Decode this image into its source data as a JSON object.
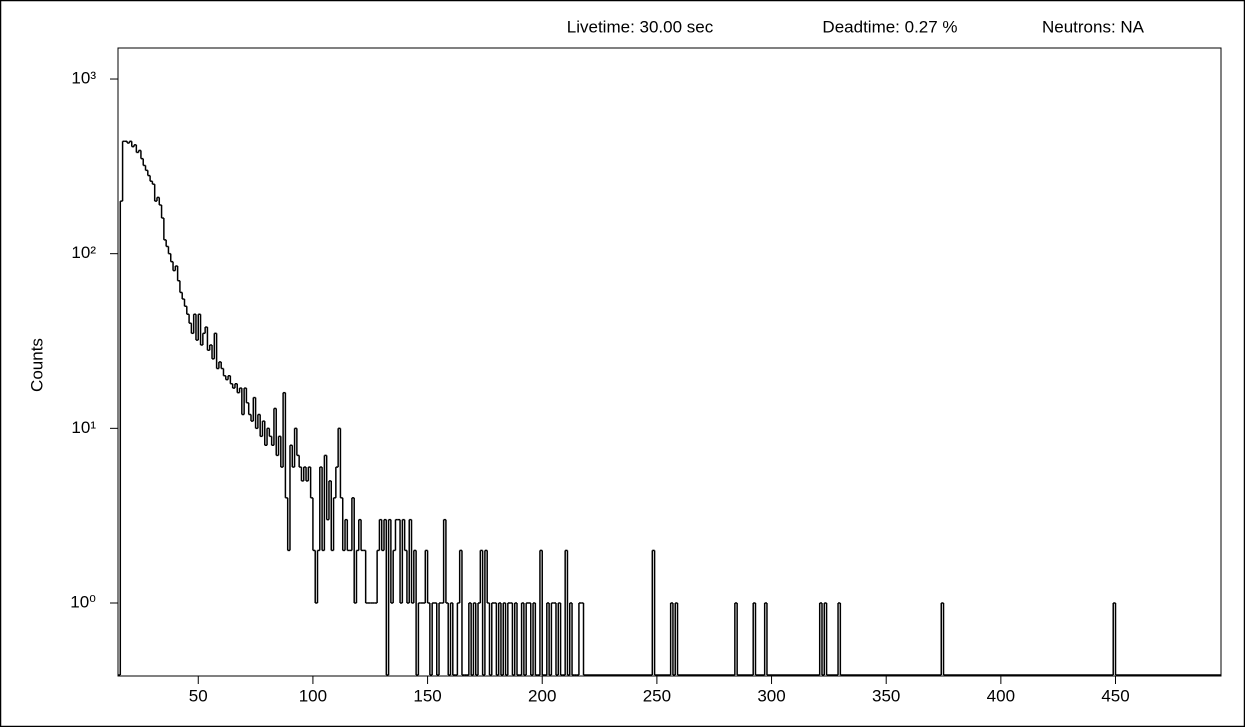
{
  "chart_data": {
    "type": "step",
    "header": [
      "Livetime: 30.00 sec",
      "Deadtime: 0.27 %",
      "Neutrons: NA"
    ],
    "ylabel": "Counts",
    "log_y": true,
    "color": "#000000",
    "xlim": [
      15,
      496
    ],
    "xticks": [
      50,
      100,
      150,
      200,
      250,
      300,
      350,
      400,
      450
    ],
    "ylim": [
      0.387,
      1285
    ],
    "yticks": [
      {
        "value": 1,
        "label": "10⁰"
      },
      {
        "value": 10,
        "label": "10¹"
      },
      {
        "value": 100,
        "label": "10²"
      },
      {
        "value": 1000,
        "label": "10³"
      }
    ],
    "x": [
      15,
      16,
      17,
      18,
      19,
      20,
      21,
      22,
      23,
      24,
      25,
      26,
      27,
      28,
      29,
      30,
      31,
      32,
      33,
      34,
      35,
      36,
      37,
      38,
      39,
      40,
      41,
      42,
      43,
      44,
      45,
      46,
      47,
      48,
      49,
      50,
      51,
      52,
      53,
      54,
      55,
      56,
      57,
      58,
      59,
      60,
      61,
      62,
      63,
      64,
      65,
      66,
      67,
      68,
      69,
      70,
      71,
      72,
      73,
      74,
      75,
      76,
      77,
      78,
      79,
      80,
      81,
      82,
      83,
      84,
      85,
      86,
      87,
      88,
      89,
      90,
      91,
      92,
      93,
      94,
      95,
      96,
      97,
      98,
      99,
      100,
      101,
      102,
      103,
      104,
      105,
      106,
      107,
      108,
      109,
      110,
      111,
      112,
      113,
      114,
      115,
      116,
      117,
      118,
      119,
      120,
      121,
      122,
      123,
      124,
      125,
      126,
      127,
      128,
      129,
      130,
      131,
      132,
      133,
      134,
      135,
      136,
      137,
      138,
      139,
      140,
      141,
      142,
      143,
      144,
      145,
      146,
      147,
      148,
      149,
      150,
      151,
      152,
      153,
      154,
      155,
      156,
      157,
      158,
      159,
      160,
      161,
      162,
      163,
      164,
      165,
      166,
      167,
      168,
      169,
      170,
      171,
      172,
      173,
      174,
      175,
      176,
      177,
      178,
      179,
      180,
      181,
      182,
      183,
      184,
      185,
      186,
      187,
      188,
      189,
      190,
      191,
      192,
      193,
      194,
      195,
      196,
      197,
      198,
      199,
      200,
      201,
      202,
      203,
      204,
      205,
      206,
      207,
      208,
      209,
      210,
      211,
      212,
      213,
      214,
      215,
      216,
      217,
      218,
      248,
      249,
      256,
      257,
      258,
      259,
      284,
      285,
      292,
      293,
      297,
      298,
      321,
      322,
      323,
      324,
      329,
      330,
      374,
      375,
      449,
      450
    ],
    "series": [
      {
        "values": [
          0,
          200,
          440,
          440,
          430,
          440,
          410,
          420,
          380,
          390,
          350,
          320,
          300,
          280,
          260,
          250,
          200,
          210,
          190,
          160,
          120,
          110,
          100,
          90,
          80,
          85,
          70,
          60,
          55,
          50,
          45,
          40,
          35,
          45,
          32,
          45,
          30,
          35,
          38,
          28,
          30,
          25,
          35,
          22,
          24,
          22,
          20,
          19,
          20,
          18,
          17,
          18,
          16,
          17,
          12,
          17,
          14,
          12,
          11,
          15,
          10,
          12,
          9,
          11,
          8,
          10,
          9,
          8,
          13,
          7,
          9,
          6,
          16,
          4,
          2,
          8,
          6,
          10,
          7,
          6,
          5,
          6,
          5,
          6,
          4,
          2,
          1,
          2,
          6,
          2,
          7,
          3,
          5,
          2,
          4,
          6,
          10,
          4,
          2,
          3,
          2,
          2,
          4,
          1,
          2,
          3,
          2,
          2,
          1,
          1,
          1,
          1,
          1,
          2,
          3,
          2,
          3,
          0,
          3,
          1,
          2,
          3,
          3,
          1,
          3,
          2,
          1,
          3,
          1,
          2,
          0,
          1,
          1,
          1,
          2,
          1,
          0,
          1,
          1,
          0,
          1,
          1,
          3,
          1,
          0,
          1,
          0,
          0,
          1,
          2,
          0,
          0,
          0,
          1,
          0,
          1,
          0,
          1,
          2,
          0,
          2,
          1,
          0,
          1,
          1,
          0,
          1,
          0,
          1,
          0,
          1,
          1,
          0,
          1,
          0,
          0,
          1,
          0,
          1,
          1,
          0,
          1,
          0,
          0,
          2,
          0,
          0,
          1,
          0,
          1,
          1,
          0,
          1,
          0,
          0,
          2,
          0,
          1,
          0,
          0,
          0,
          1,
          1,
          0,
          2,
          0,
          1,
          0,
          1,
          0,
          1,
          0,
          1,
          0,
          1,
          0,
          1,
          0,
          1,
          0,
          1,
          0,
          1,
          0,
          1,
          0
        ]
      }
    ]
  }
}
